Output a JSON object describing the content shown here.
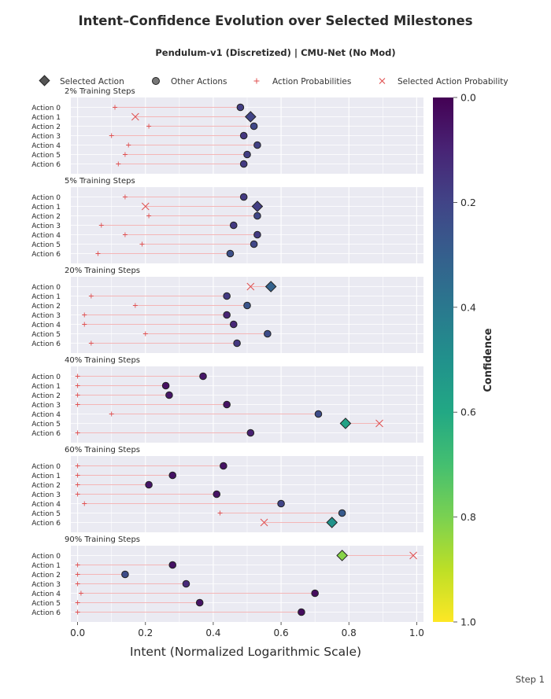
{
  "title": "Intent–Confidence Evolution over Selected Milestones",
  "subtitle": "Pendulum-v1 (Discretized) | CMU-Net (No Mod)",
  "legend": [
    {
      "label": "Selected Action",
      "marker": "diamond"
    },
    {
      "label": "Other Actions",
      "marker": "circle"
    },
    {
      "label": "Action Probabilities",
      "marker": "plus"
    },
    {
      "label": "Selected Action Probability",
      "marker": "x"
    }
  ],
  "xlabel": "Intent (Normalized Logarithmic Scale)",
  "xticks": [
    "0.0",
    "0.2",
    "0.4",
    "0.6",
    "0.8",
    "1.0"
  ],
  "xlim": [
    -0.02,
    1.02
  ],
  "colorbar": {
    "label": "Confidence",
    "ticks": [
      "0.0",
      "0.2",
      "0.4",
      "0.6",
      "0.8",
      "1.0"
    ],
    "range": [
      0,
      1
    ],
    "colormap": [
      "#440154",
      "#482475",
      "#414487",
      "#355f8d",
      "#2a788e",
      "#21918c",
      "#22a884",
      "#44bf70",
      "#7ad151",
      "#bddf26",
      "#fde725"
    ]
  },
  "footer": "Step 1",
  "chart_data": {
    "type": "scatter",
    "actions": [
      "Action 0",
      "Action 1",
      "Action 2",
      "Action 3",
      "Action 4",
      "Action 5",
      "Action 6"
    ],
    "panels": [
      {
        "title": "2% Training Steps",
        "selected": 1,
        "intent": [
          0.48,
          0.51,
          0.52,
          0.49,
          0.53,
          0.5,
          0.49
        ],
        "confidence": [
          0.18,
          0.2,
          0.21,
          0.16,
          0.19,
          0.18,
          0.17
        ],
        "probability": [
          0.11,
          0.17,
          0.21,
          0.1,
          0.15,
          0.14,
          0.12
        ]
      },
      {
        "title": "5% Training Steps",
        "selected": 1,
        "intent": [
          0.49,
          0.53,
          0.53,
          0.46,
          0.53,
          0.52,
          0.45
        ],
        "confidence": [
          0.17,
          0.18,
          0.21,
          0.17,
          0.17,
          0.21,
          0.24
        ],
        "probability": [
          0.14,
          0.2,
          0.21,
          0.07,
          0.14,
          0.19,
          0.06
        ]
      },
      {
        "title": "20% Training Steps",
        "selected": 0,
        "intent": [
          0.57,
          0.44,
          0.5,
          0.44,
          0.46,
          0.56,
          0.47
        ],
        "confidence": [
          0.31,
          0.17,
          0.26,
          0.1,
          0.11,
          0.23,
          0.16
        ],
        "probability": [
          0.51,
          0.04,
          0.17,
          0.02,
          0.02,
          0.2,
          0.04
        ]
      },
      {
        "title": "40% Training Steps",
        "selected": 5,
        "intent": [
          0.37,
          0.26,
          0.27,
          0.44,
          0.71,
          0.79,
          0.51
        ],
        "confidence": [
          0.06,
          0.04,
          0.06,
          0.05,
          0.23,
          0.58,
          0.09
        ],
        "probability": [
          0.0,
          0.0,
          0.0,
          0.0,
          0.1,
          0.89,
          0.0
        ]
      },
      {
        "title": "60% Training Steps",
        "selected": 6,
        "intent": [
          0.43,
          0.28,
          0.21,
          0.41,
          0.6,
          0.78,
          0.75
        ],
        "confidence": [
          0.05,
          0.05,
          0.06,
          0.05,
          0.2,
          0.28,
          0.51
        ],
        "probability": [
          0.0,
          0.0,
          0.0,
          0.0,
          0.02,
          0.42,
          0.55
        ]
      },
      {
        "title": "90% Training Steps",
        "selected": 0,
        "intent": [
          0.78,
          0.28,
          0.14,
          0.32,
          0.7,
          0.36,
          0.66
        ],
        "confidence": [
          0.82,
          0.05,
          0.23,
          0.12,
          0.03,
          0.05,
          0.03
        ],
        "probability": [
          0.99,
          0.0,
          0.0,
          0.0,
          0.01,
          0.0,
          0.0
        ]
      }
    ]
  }
}
